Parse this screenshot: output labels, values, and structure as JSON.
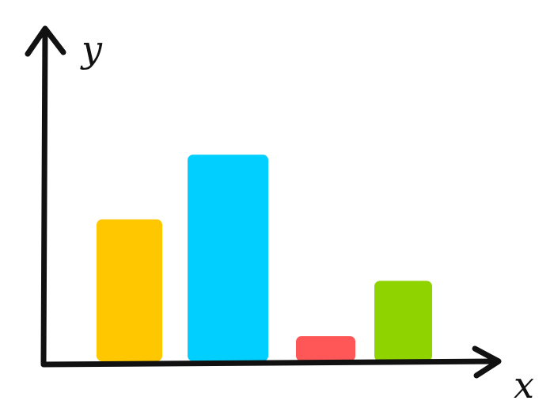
{
  "chart_data": {
    "type": "bar",
    "x_label": "x",
    "y_label": "y",
    "values": [
      180,
      262,
      32,
      102
    ],
    "colors": [
      "#ffc700",
      "#00cfff",
      "#ff5757",
      "#8fd400"
    ],
    "ylim": [
      0,
      420
    ]
  }
}
